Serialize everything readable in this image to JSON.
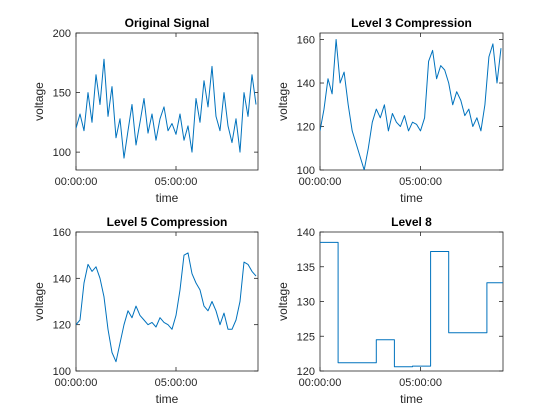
{
  "chart_data": [
    {
      "type": "line",
      "title": "Original Signal",
      "xlabel": "time",
      "ylabel": "voltage",
      "xlim": [
        0,
        9.1
      ],
      "ylim": [
        85,
        200
      ],
      "yticks": [
        100,
        150,
        200
      ],
      "xticks": [
        {
          "v": 0,
          "label": "00:00:00"
        },
        {
          "v": 5,
          "label": "05:00:00"
        }
      ],
      "color": "#0072BD",
      "series": [
        {
          "x": [
            0,
            0.2,
            0.4,
            0.6,
            0.8,
            1.0,
            1.2,
            1.4,
            1.6,
            1.8,
            2.0,
            2.2,
            2.4,
            2.6,
            2.8,
            3.0,
            3.2,
            3.4,
            3.6,
            3.8,
            4.0,
            4.2,
            4.4,
            4.6,
            4.8,
            5.0,
            5.2,
            5.4,
            5.6,
            5.8,
            6.0,
            6.2,
            6.4,
            6.6,
            6.8,
            7.0,
            7.2,
            7.4,
            7.6,
            7.8,
            8.0,
            8.2,
            8.4,
            8.6,
            8.8,
            9.0
          ],
          "y": [
            120,
            132,
            118,
            150,
            125,
            165,
            140,
            178,
            130,
            155,
            112,
            128,
            95,
            118,
            140,
            106,
            125,
            145,
            116,
            132,
            110,
            128,
            138,
            118,
            124,
            115,
            132,
            110,
            122,
            100,
            145,
            125,
            160,
            138,
            172,
            130,
            118,
            150,
            122,
            108,
            128,
            100,
            150,
            130,
            165,
            140
          ]
        }
      ]
    },
    {
      "type": "line",
      "title": "Level 3 Compression",
      "xlabel": "time",
      "ylabel": "voltage",
      "xlim": [
        0,
        9.1
      ],
      "ylim": [
        100,
        163
      ],
      "yticks": [
        100,
        120,
        140,
        160
      ],
      "xticks": [
        {
          "v": 0,
          "label": "00:00:00"
        },
        {
          "v": 5,
          "label": "05:00:00"
        }
      ],
      "color": "#0072BD",
      "series": [
        {
          "x": [
            0,
            0.2,
            0.4,
            0.6,
            0.8,
            1.0,
            1.2,
            1.4,
            1.6,
            1.8,
            2.0,
            2.2,
            2.4,
            2.6,
            2.8,
            3.0,
            3.2,
            3.4,
            3.6,
            3.8,
            4.0,
            4.2,
            4.4,
            4.6,
            4.8,
            5.0,
            5.2,
            5.4,
            5.6,
            5.8,
            6.0,
            6.2,
            6.4,
            6.6,
            6.8,
            7.0,
            7.2,
            7.4,
            7.6,
            7.8,
            8.0,
            8.2,
            8.4,
            8.6,
            8.8,
            9.0
          ],
          "y": [
            118,
            128,
            142,
            135,
            160,
            140,
            145,
            130,
            118,
            112,
            106,
            100,
            110,
            122,
            128,
            124,
            130,
            118,
            126,
            122,
            120,
            125,
            118,
            122,
            121,
            118,
            124,
            150,
            155,
            142,
            148,
            146,
            140,
            130,
            136,
            132,
            125,
            128,
            120,
            124,
            118,
            130,
            152,
            158,
            140,
            156
          ]
        }
      ]
    },
    {
      "type": "line",
      "title": "Level 5 Compression",
      "xlabel": "time",
      "ylabel": "voltage",
      "xlim": [
        0,
        9.1
      ],
      "ylim": [
        100,
        160
      ],
      "yticks": [
        100,
        120,
        140,
        160
      ],
      "xticks": [
        {
          "v": 0,
          "label": "00:00:00"
        },
        {
          "v": 5,
          "label": "05:00:00"
        }
      ],
      "color": "#0072BD",
      "series": [
        {
          "x": [
            0,
            0.2,
            0.4,
            0.6,
            0.8,
            1.0,
            1.2,
            1.4,
            1.6,
            1.8,
            2.0,
            2.2,
            2.4,
            2.6,
            2.8,
            3.0,
            3.2,
            3.4,
            3.6,
            3.8,
            4.0,
            4.2,
            4.4,
            4.6,
            4.8,
            5.0,
            5.2,
            5.4,
            5.6,
            5.8,
            6.0,
            6.2,
            6.4,
            6.6,
            6.8,
            7.0,
            7.2,
            7.4,
            7.6,
            7.8,
            8.0,
            8.2,
            8.4,
            8.6,
            8.8,
            9.0
          ],
          "y": [
            120,
            122,
            138,
            146,
            143,
            145,
            140,
            132,
            118,
            108,
            104,
            112,
            120,
            126,
            123,
            128,
            124,
            122,
            120,
            121,
            119,
            123,
            121,
            120,
            118,
            124,
            135,
            150,
            151,
            142,
            138,
            135,
            128,
            126,
            130,
            126,
            120,
            125,
            118,
            118,
            122,
            130,
            147,
            146,
            143,
            141
          ]
        }
      ]
    },
    {
      "type": "line",
      "title": "Level 8",
      "xlabel": "time",
      "ylabel": "voltage",
      "xlim": [
        0,
        9.1
      ],
      "ylim": [
        120,
        140
      ],
      "yticks": [
        120,
        125,
        130,
        135,
        140
      ],
      "xticks": [
        {
          "v": 0,
          "label": "00:00:00"
        },
        {
          "v": 5,
          "label": "05:00:00"
        }
      ],
      "color": "#0072BD",
      "series": [
        {
          "x": [
            0,
            0.9,
            0.9,
            1.8,
            1.8,
            2.8,
            2.8,
            3.7,
            3.7,
            4.6,
            4.6,
            5.5,
            5.5,
            6.4,
            6.4,
            7.3,
            7.3,
            8.3,
            8.3,
            9.1
          ],
          "y": [
            138.5,
            138.5,
            121.2,
            121.2,
            121.2,
            121.2,
            124.5,
            124.5,
            120.6,
            120.6,
            120.7,
            120.7,
            137.2,
            137.2,
            125.5,
            125.5,
            125.5,
            125.5,
            132.7,
            132.7
          ]
        }
      ]
    }
  ]
}
